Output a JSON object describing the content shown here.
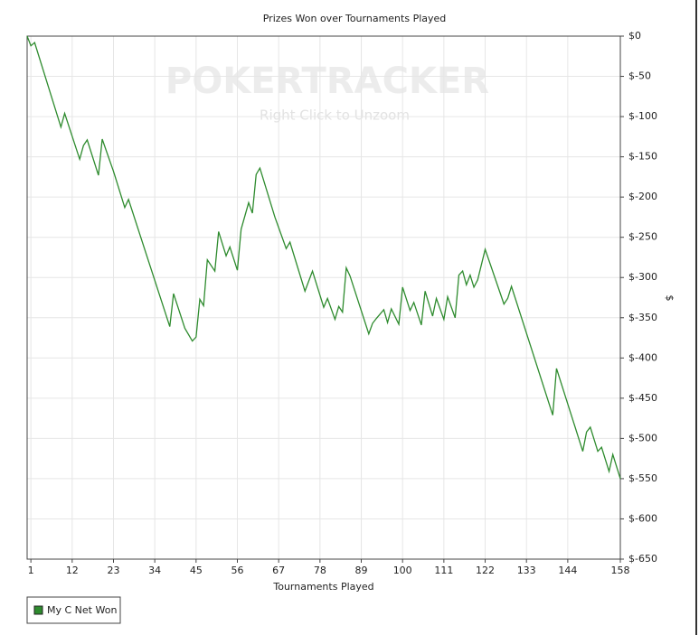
{
  "chart_data": {
    "type": "line",
    "title": "Prizes Won over Tournaments Played",
    "watermark": "POKERTRACKER",
    "watermark_hint": "Right Click to Unzoom",
    "x_label": "Tournaments Played",
    "y_label": "$",
    "x": [
      0,
      1,
      2,
      9,
      10,
      14,
      15,
      16,
      19,
      20,
      23,
      26,
      27,
      38,
      39,
      42,
      44,
      45,
      46,
      47,
      48,
      50,
      51,
      53,
      54,
      56,
      57,
      59,
      60,
      61,
      62,
      66,
      69,
      70,
      74,
      76,
      79,
      80,
      82,
      83,
      84,
      85,
      86,
      91,
      92,
      93,
      95,
      96,
      97,
      99,
      100,
      102,
      103,
      105,
      106,
      108,
      109,
      111,
      112,
      114,
      115,
      116,
      117,
      118,
      119,
      120,
      122,
      127,
      128,
      129,
      140,
      141,
      148,
      149,
      150,
      152,
      153,
      155,
      156,
      158
    ],
    "series": [
      {
        "name": "My C Net Won",
        "color": "#2e8b2e",
        "values": [
          0,
          -12,
          -8,
          -113,
          -96,
          -153,
          -136,
          -129,
          -173,
          -128,
          -168,
          -213,
          -203,
          -361,
          -320,
          -363,
          -379,
          -374,
          -327,
          -335,
          -278,
          -292,
          -243,
          -273,
          -262,
          -291,
          -240,
          -207,
          -220,
          -172,
          -164,
          -225,
          -264,
          -256,
          -317,
          -292,
          -337,
          -326,
          -352,
          -336,
          -343,
          -288,
          -298,
          -370,
          -357,
          -351,
          -340,
          -356,
          -339,
          -358,
          -312,
          -341,
          -331,
          -359,
          -317,
          -348,
          -326,
          -352,
          -324,
          -350,
          -297,
          -292,
          -309,
          -297,
          -312,
          -303,
          -265,
          -333,
          -326,
          -311,
          -471,
          -413,
          -516,
          -492,
          -486,
          -516,
          -511,
          -541,
          -520,
          -550
        ]
      }
    ],
    "xlim": [
      0,
      158
    ],
    "xticks": [
      1,
      12,
      23,
      34,
      45,
      56,
      67,
      78,
      89,
      100,
      111,
      122,
      133,
      144,
      158
    ],
    "ylim": [
      -650,
      0
    ],
    "yticks": [
      {
        "value": 0,
        "label": "$0"
      },
      {
        "value": -50,
        "label": "$-50"
      },
      {
        "value": -100,
        "label": "$-100"
      },
      {
        "value": -150,
        "label": "$-150"
      },
      {
        "value": -200,
        "label": "$-200"
      },
      {
        "value": -250,
        "label": "$-250"
      },
      {
        "value": -300,
        "label": "$-300"
      },
      {
        "value": -350,
        "label": "$-350"
      },
      {
        "value": -400,
        "label": "$-400"
      },
      {
        "value": -450,
        "label": "$-450"
      },
      {
        "value": -500,
        "label": "$-500"
      },
      {
        "value": -550,
        "label": "$-550"
      },
      {
        "value": -600,
        "label": "$-600"
      },
      {
        "value": -650,
        "label": "$-650"
      }
    ],
    "grid": true,
    "legend": "bottom-left"
  }
}
